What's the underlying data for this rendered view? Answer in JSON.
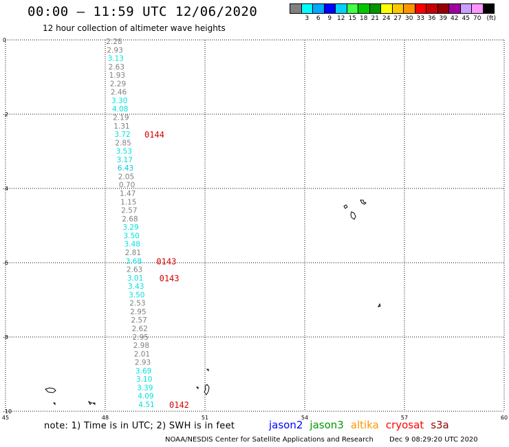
{
  "header": {
    "title": "00:00 – 11:59 UTC 12/06/2020",
    "subtitle": "12 hour collection of altimeter wave heights"
  },
  "legend": {
    "swatches": [
      {
        "color": "#808080",
        "label": ""
      },
      {
        "color": "#00ffff",
        "label": "3"
      },
      {
        "color": "#00aaff",
        "label": "6"
      },
      {
        "color": "#0000ff",
        "label": "9"
      },
      {
        "color": "#00d2ff",
        "label": "12"
      },
      {
        "color": "#44ff44",
        "label": "15"
      },
      {
        "color": "#00c800",
        "label": "18"
      },
      {
        "color": "#009600",
        "label": "21"
      },
      {
        "color": "#ffff00",
        "label": "24"
      },
      {
        "color": "#ffc800",
        "label": "27"
      },
      {
        "color": "#ff9600",
        "label": "30"
      },
      {
        "color": "#ff0000",
        "label": "33"
      },
      {
        "color": "#c80000",
        "label": "36"
      },
      {
        "color": "#960000",
        "label": "39"
      },
      {
        "color": "#a000a0",
        "label": "42"
      },
      {
        "color": "#c8a0ff",
        "label": "45"
      },
      {
        "color": "#ff96ff",
        "label": "70"
      },
      {
        "color": "#000000",
        "label": "(ft)"
      }
    ]
  },
  "map": {
    "lon_range": [
      45,
      60
    ],
    "lat_range": [
      -10,
      0
    ],
    "x_ticks": [
      "45",
      "48",
      "51",
      "54",
      "57",
      "60"
    ],
    "y_ticks": [
      "0",
      "-2",
      "-4",
      "-6",
      "-8",
      "-10"
    ],
    "observations": [
      {
        "v": "2.28",
        "c": "#808080"
      },
      {
        "v": "2.93",
        "c": "#808080"
      },
      {
        "v": "3.13",
        "c": "#00e0e0"
      },
      {
        "v": "2.63",
        "c": "#808080"
      },
      {
        "v": "1.93",
        "c": "#808080"
      },
      {
        "v": "2.29",
        "c": "#808080"
      },
      {
        "v": "2.46",
        "c": "#808080"
      },
      {
        "v": "3.30",
        "c": "#00e0e0"
      },
      {
        "v": "4.08",
        "c": "#00e0e0"
      },
      {
        "v": "2.19",
        "c": "#808080"
      },
      {
        "v": "1.31",
        "c": "#808080"
      },
      {
        "v": "3.72",
        "c": "#00e0e0"
      },
      {
        "v": "2.85",
        "c": "#808080"
      },
      {
        "v": "3.53",
        "c": "#00e0e0"
      },
      {
        "v": "3.17",
        "c": "#00e0e0"
      },
      {
        "v": "6.43",
        "c": "#00c8e0"
      },
      {
        "v": "2.05",
        "c": "#808080"
      },
      {
        "v": "0.70",
        "c": "#808080"
      },
      {
        "v": "1.47",
        "c": "#808080"
      },
      {
        "v": "1.15",
        "c": "#808080"
      },
      {
        "v": "2.57",
        "c": "#808080"
      },
      {
        "v": "2.68",
        "c": "#808080"
      },
      {
        "v": "3.29",
        "c": "#00e0e0"
      },
      {
        "v": "3.50",
        "c": "#00e0e0"
      },
      {
        "v": "3.48",
        "c": "#00e0e0"
      },
      {
        "v": "2.81",
        "c": "#808080"
      },
      {
        "v": "3.68",
        "c": "#00e0e0"
      },
      {
        "v": "2.63",
        "c": "#808080"
      },
      {
        "v": "3.01",
        "c": "#00e0e0"
      },
      {
        "v": "3.43",
        "c": "#00e0e0"
      },
      {
        "v": "3.50",
        "c": "#00e0e0"
      },
      {
        "v": "2.53",
        "c": "#808080"
      },
      {
        "v": "2.95",
        "c": "#808080"
      },
      {
        "v": "2.57",
        "c": "#808080"
      },
      {
        "v": "2.62",
        "c": "#808080"
      },
      {
        "v": "2.95",
        "c": "#808080"
      },
      {
        "v": "2.98",
        "c": "#808080"
      },
      {
        "v": "2.01",
        "c": "#808080"
      },
      {
        "v": "2.93",
        "c": "#808080"
      },
      {
        "v": "3.69",
        "c": "#00e0e0"
      },
      {
        "v": "3.10",
        "c": "#00e0e0"
      },
      {
        "v": "3.39",
        "c": "#00e0e0"
      },
      {
        "v": "4.09",
        "c": "#00e0e0"
      },
      {
        "v": "4.51",
        "c": "#00e0e0"
      }
    ],
    "pass_times": [
      "0144",
      "0143",
      "0143",
      "0142"
    ]
  },
  "note": "note:  1) Time is in UTC;  2) SWH is in feet",
  "satellites": [
    {
      "name": "jason2",
      "color": "#0000ff"
    },
    {
      "name": "jason3",
      "color": "#009600"
    },
    {
      "name": "altika",
      "color": "#ff9600"
    },
    {
      "name": "cryosat",
      "color": "#ff0000"
    },
    {
      "name": "s3a",
      "color": "#960000"
    }
  ],
  "footer": {
    "credit": "NOAA/NESDIS Center for Satellite Applications and Research",
    "timestamp": "Dec  9 08:29:20 UTC 2020"
  }
}
